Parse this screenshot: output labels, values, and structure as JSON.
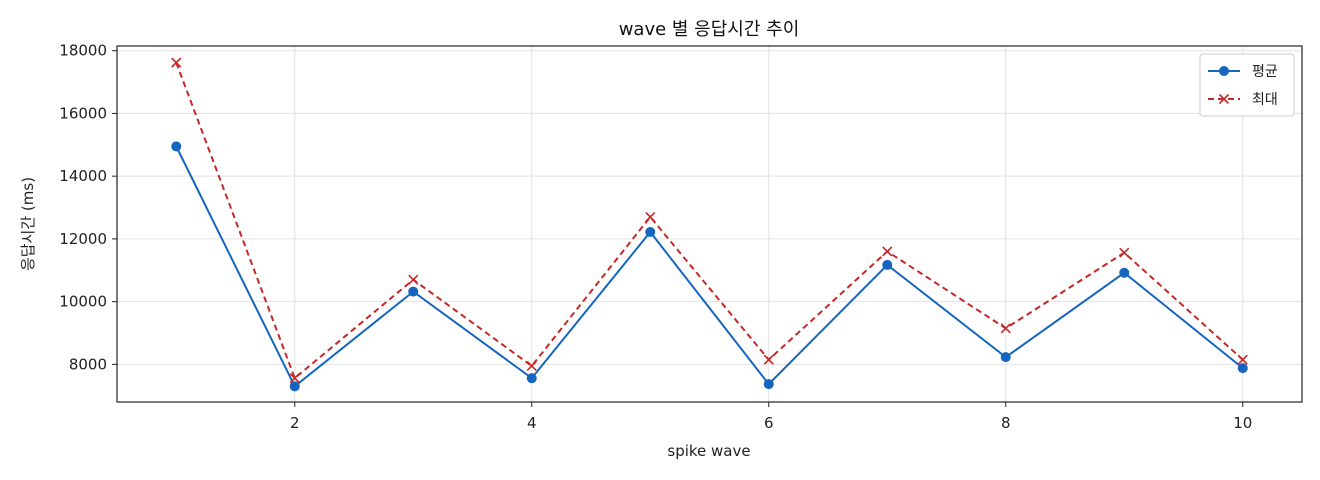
{
  "chart_data": {
    "type": "line",
    "title": "wave 별 응답시간 추이",
    "xlabel": "spike wave",
    "ylabel": "응답시간 (ms)",
    "x": [
      1,
      2,
      3,
      4,
      5,
      6,
      7,
      8,
      9,
      10
    ],
    "xlim": [
      0.5,
      10.5
    ],
    "ylim": [
      6800,
      18150
    ],
    "xticks": [
      2,
      4,
      6,
      8,
      10
    ],
    "yticks": [
      8000,
      10000,
      12000,
      14000,
      16000,
      18000
    ],
    "grid": true,
    "legend_position": "top-right",
    "series": [
      {
        "name": "평균",
        "values": [
          14950,
          7300,
          10320,
          7560,
          12220,
          7370,
          11170,
          8230,
          10920,
          7880
        ],
        "color": "#1565c0",
        "line_style": "solid",
        "marker": "circle"
      },
      {
        "name": "최대",
        "values": [
          17620,
          7560,
          10700,
          7950,
          12700,
          8150,
          11600,
          9150,
          11560,
          8150
        ],
        "color": "#c62828",
        "line_style": "dashed",
        "marker": "x"
      }
    ]
  }
}
